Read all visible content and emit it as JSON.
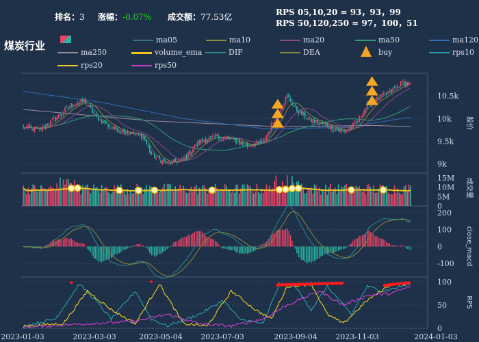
{
  "header": {
    "rank_label": "排名：",
    "rank_value": "3",
    "change_label": "涨幅：",
    "change_value": "-0.07%",
    "turnover_label": "成交额：",
    "turnover_value": "77.53亿",
    "rps_short": "RPS 05,10,20 = 93，93，99",
    "rps_long": "RPS 50,120,250 = 97，100，51"
  },
  "title": "煤炭行业",
  "legend": [
    {
      "id": "kline",
      "label": "",
      "color": "#ef4466"
    },
    {
      "id": "ma05",
      "label": "ma05",
      "color": "#3c6f8a"
    },
    {
      "id": "ma10",
      "label": "ma10",
      "color": "#8a8a3a"
    },
    {
      "id": "ma20",
      "label": "ma20",
      "color": "#8a4a8a"
    },
    {
      "id": "ma50",
      "label": "ma50",
      "color": "#2e9f7a"
    },
    {
      "id": "ma120",
      "label": "ma120",
      "color": "#2f6fb5"
    },
    {
      "id": "ma250",
      "label": "ma250",
      "color": "#9e8e9e"
    },
    {
      "id": "volume_ema",
      "label": "volume_ema",
      "color": "#f5c518"
    },
    {
      "id": "dif",
      "label": "DIF",
      "color": "#2a8a8a"
    },
    {
      "id": "dea",
      "label": "DEA",
      "color": "#8a8a3a"
    },
    {
      "id": "buy",
      "label": "buy",
      "color": "#f5a623"
    },
    {
      "id": "rps10",
      "label": "rps10",
      "color": "#2a9faa"
    },
    {
      "id": "rps20",
      "label": "rps20",
      "color": "#f0d020"
    },
    {
      "id": "rps50",
      "label": "rps50",
      "color": "#d040d0"
    }
  ],
  "colors": {
    "up": "#ef4466",
    "down": "#2bb6a0",
    "buy": "#f5a623",
    "volume_ema": "#f5c518",
    "rps_high": "#ff1a1a"
  },
  "chart_data": [
    {
      "type": "candlestick",
      "panel": "price",
      "ylabel": "股价",
      "yticks": [
        "9k",
        "9.5k",
        "10k",
        "10.5k"
      ],
      "ytick_values": [
        9000,
        9500,
        10000,
        10500
      ],
      "ylim": [
        8800,
        11000
      ],
      "x_start": "2023-01-03",
      "x_end": "2024-01-03",
      "close_anchors": [
        [
          0,
          9800
        ],
        [
          10,
          9750
        ],
        [
          20,
          10000
        ],
        [
          30,
          10300
        ],
        [
          38,
          10400
        ],
        [
          45,
          10050
        ],
        [
          55,
          9800
        ],
        [
          65,
          9700
        ],
        [
          75,
          9600
        ],
        [
          80,
          9200
        ],
        [
          90,
          9000
        ],
        [
          100,
          9100
        ],
        [
          110,
          9500
        ],
        [
          120,
          9600
        ],
        [
          130,
          9550
        ],
        [
          140,
          9400
        ],
        [
          150,
          9500
        ],
        [
          160,
          10200
        ],
        [
          165,
          10500
        ],
        [
          170,
          10200
        ],
        [
          180,
          9950
        ],
        [
          190,
          9850
        ],
        [
          200,
          9700
        ],
        [
          208,
          9900
        ],
        [
          215,
          10300
        ],
        [
          222,
          10450
        ],
        [
          230,
          10600
        ],
        [
          237,
          10800
        ],
        [
          242,
          10750
        ]
      ],
      "ma120_anchors": [
        [
          0,
          10600
        ],
        [
          50,
          10350
        ],
        [
          100,
          10000
        ],
        [
          150,
          9780
        ],
        [
          200,
          9800
        ],
        [
          242,
          10030
        ]
      ],
      "ma250_anchors": [
        [
          0,
          10200
        ],
        [
          80,
          9950
        ],
        [
          160,
          9820
        ],
        [
          220,
          9850
        ],
        [
          242,
          9820
        ]
      ],
      "buy_signals": [
        {
          "index": 159,
          "level": 9800
        },
        {
          "index": 218,
          "level": 10300
        }
      ]
    },
    {
      "type": "bar",
      "panel": "volume",
      "ylabel": "成交量",
      "yticks": [
        "0",
        "5M",
        "10M",
        "15M"
      ],
      "ytick_values": [
        0,
        5,
        10,
        15
      ],
      "ylim": [
        0,
        17.5
      ],
      "unit": "M",
      "ema_level": 8
    },
    {
      "type": "bar",
      "panel": "macd",
      "ylabel": "close_macd",
      "yticks": [
        "-100",
        "0",
        "100",
        "200"
      ],
      "ytick_values": [
        -100,
        0,
        100,
        200
      ],
      "ylim": [
        -180,
        240
      ]
    },
    {
      "type": "line",
      "panel": "rps",
      "ylabel": "RPS",
      "yticks": [
        "0",
        "50",
        "100"
      ],
      "ytick_values": [
        0,
        50,
        100
      ],
      "ylim": [
        0,
        110
      ]
    }
  ],
  "xaxis": {
    "ticks": [
      "2023-01-03",
      "2023-03-03",
      "2023-05-04",
      "2023-07-03",
      "2023-09-04",
      "2023-11-03",
      "2024-01-03"
    ]
  }
}
